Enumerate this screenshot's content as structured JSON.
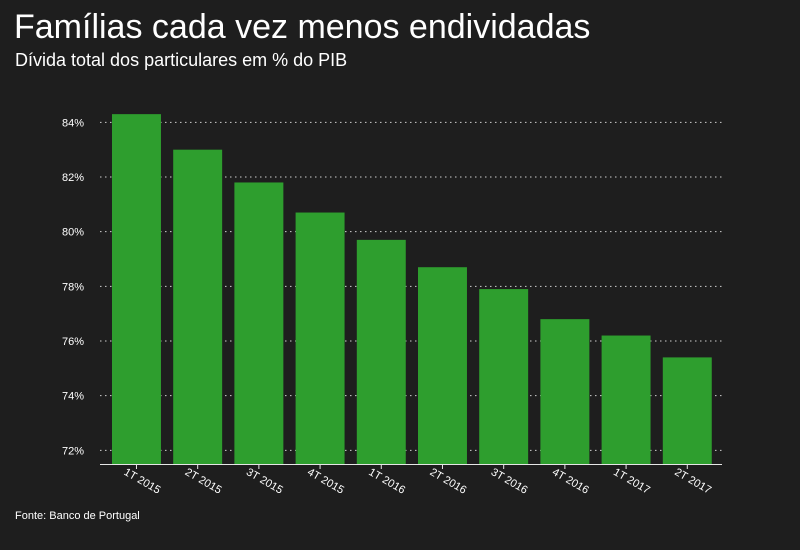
{
  "colors": {
    "background": "#1e1e1e",
    "bar": "#2e9e2e",
    "text": "#ffffff",
    "grid": "#cfcfcf"
  },
  "source": "Fonte: Banco de Portugal",
  "chart_data": {
    "type": "bar",
    "title": "Famílias cada vez menos endividadas",
    "subtitle": "Dívida total dos particulares em % do PIB",
    "categories": [
      "1T 2015",
      "2T 2015",
      "3T 2015",
      "4T 2015",
      "1T 2016",
      "2T 2016",
      "3T 2016",
      "4T 2016",
      "1T 2017",
      "2T 2017"
    ],
    "values": [
      84.3,
      83.0,
      81.8,
      80.7,
      79.7,
      78.7,
      77.9,
      76.8,
      76.2,
      75.4
    ],
    "ylim": [
      71.5,
      85
    ],
    "yticks": [
      72,
      74,
      76,
      78,
      80,
      82,
      84
    ],
    "ytick_labels": [
      "72%",
      "74%",
      "76%",
      "78%",
      "80%",
      "82%",
      "84%"
    ],
    "grid": true,
    "grid_style": "dotted",
    "legend": "none"
  }
}
